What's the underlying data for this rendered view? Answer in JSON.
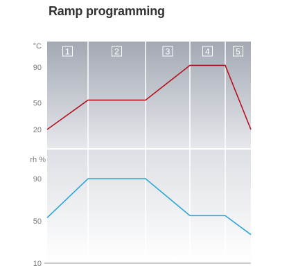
{
  "title": "Ramp programming",
  "chart_data": [
    {
      "type": "line",
      "unit": "°C",
      "segments": [
        "1",
        "2",
        "3",
        "4",
        "5"
      ],
      "yticks": [
        20,
        50,
        90
      ],
      "series": [
        {
          "color": "#b3121e",
          "x": [
            0,
            1,
            2,
            3,
            4,
            5
          ],
          "values": [
            20,
            53,
            53,
            92,
            92,
            20
          ]
        }
      ]
    },
    {
      "type": "line",
      "unit": "rh %",
      "yticks": [
        10,
        50,
        90
      ],
      "series": [
        {
          "color": "#2aa6d8",
          "x": [
            0,
            1,
            2,
            3,
            4,
            5
          ],
          "values": [
            53,
            90,
            90,
            55,
            55,
            37
          ]
        }
      ]
    }
  ]
}
